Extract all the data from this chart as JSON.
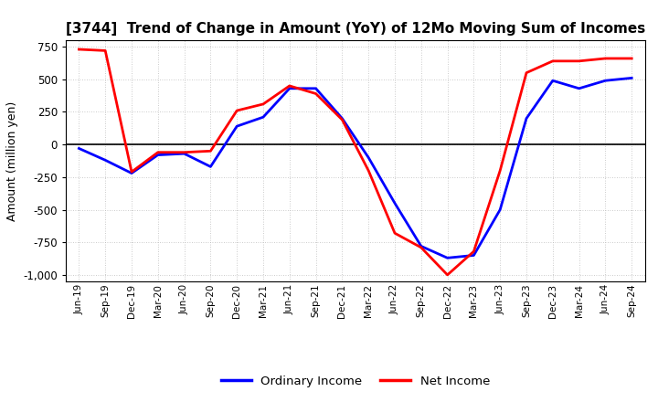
{
  "title": "[3744]  Trend of Change in Amount (YoY) of 12Mo Moving Sum of Incomes",
  "ylabel": "Amount (million yen)",
  "x_labels": [
    "Jun-19",
    "Sep-19",
    "Dec-19",
    "Mar-20",
    "Jun-20",
    "Sep-20",
    "Dec-20",
    "Mar-21",
    "Jun-21",
    "Sep-21",
    "Dec-21",
    "Mar-22",
    "Jun-22",
    "Sep-22",
    "Dec-22",
    "Mar-23",
    "Jun-23",
    "Sep-23",
    "Dec-23",
    "Mar-24",
    "Jun-24",
    "Sep-24"
  ],
  "ordinary_income": [
    -30,
    -120,
    -220,
    -80,
    -70,
    -170,
    140,
    210,
    430,
    430,
    200,
    -100,
    -450,
    -780,
    -870,
    -850,
    -500,
    200,
    490,
    430,
    490,
    510
  ],
  "net_income": [
    730,
    720,
    -210,
    -60,
    -60,
    -50,
    260,
    310,
    450,
    390,
    190,
    -200,
    -680,
    -790,
    -1000,
    -820,
    -200,
    550,
    640,
    640,
    660,
    660
  ],
  "ordinary_color": "#0000ff",
  "net_color": "#ff0000",
  "line_width": 2.0,
  "ylim": [
    -1050,
    800
  ],
  "yticks": [
    -1000,
    -750,
    -500,
    -250,
    0,
    250,
    500,
    750
  ],
  "background_color": "#ffffff",
  "grid_color": "#aaaaaa",
  "legend_labels": [
    "Ordinary Income",
    "Net Income"
  ]
}
